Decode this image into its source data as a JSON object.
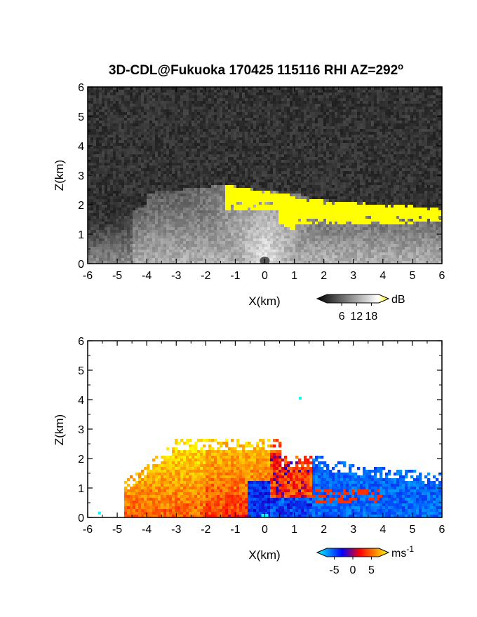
{
  "title": "3D-CDL@Fukuoka 170425 115116 RHI AZ=292",
  "title_superscript": "o",
  "chart_data": [
    {
      "type": "heatmap",
      "panel": "reflectivity",
      "xlabel": "X(km)",
      "ylabel": "Z(km)",
      "xlim": [
        -6,
        6
      ],
      "ylim": [
        0,
        6
      ],
      "xticks": [
        "-6",
        "-5",
        "-4",
        "-3",
        "-2",
        "-1",
        "0",
        "1",
        "2",
        "3",
        "4",
        "5",
        "6"
      ],
      "yticks": [
        "0",
        "1",
        "2",
        "3",
        "4",
        "5",
        "6"
      ],
      "colorbar": {
        "unit": "dB",
        "ticks": [
          "6",
          "12",
          "18"
        ],
        "tick_values": [
          6,
          12,
          18
        ],
        "range": [
          0,
          21
        ],
        "colors": [
          "#000000",
          "#ffffff",
          "#ffff00"
        ]
      },
      "background_color": "#1e1e1e",
      "features": {
        "cloud_top_km": 2.7,
        "high_signal_layer": {
          "x_range": [
            -1.3,
            6.0
          ],
          "z_range": [
            1.3,
            2.7
          ],
          "color": "#ffff00"
        }
      }
    },
    {
      "type": "heatmap",
      "panel": "doppler velocity",
      "xlabel": "X(km)",
      "ylabel": "Z(km)",
      "xlim": [
        -6,
        6
      ],
      "ylim": [
        0,
        6
      ],
      "xticks": [
        "-6",
        "-5",
        "-4",
        "-3",
        "-2",
        "-1",
        "0",
        "1",
        "2",
        "3",
        "4",
        "5",
        "6"
      ],
      "yticks": [
        "0",
        "1",
        "2",
        "3",
        "4",
        "5",
        "6"
      ],
      "colorbar": {
        "unit": "ms",
        "unit_superscript": "-1",
        "ticks": [
          "-5",
          "0",
          "5"
        ],
        "tick_values": [
          -5,
          0,
          5
        ],
        "range": [
          -7,
          7
        ],
        "colors": [
          "#00ffff",
          "#0000ff",
          "#ff0000",
          "#ffff00"
        ]
      },
      "background_color": "#ffffff",
      "features": {
        "positive_region_x_range": [
          -5.2,
          0.6
        ],
        "negative_region_x_range": [
          0.2,
          6.0
        ]
      }
    }
  ]
}
